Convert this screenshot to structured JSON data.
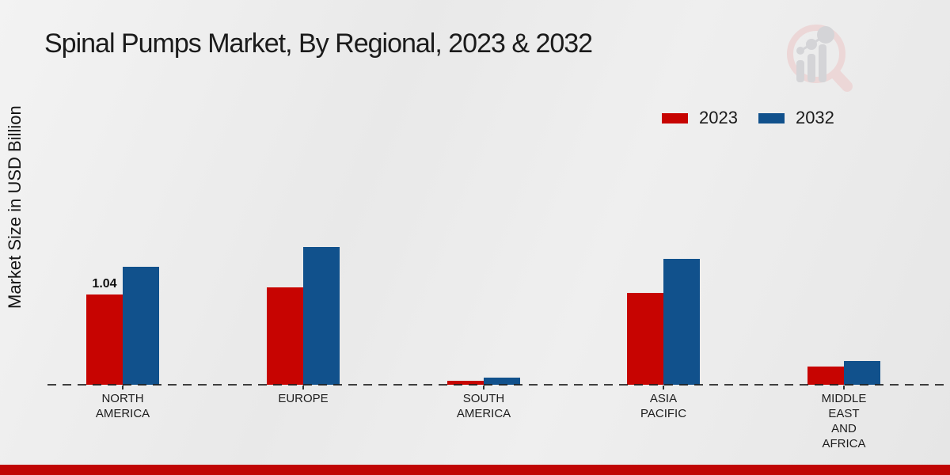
{
  "title": "Spinal Pumps Market, By Regional, 2023 & 2032",
  "y_axis_label": "Market Size in USD Billion",
  "footer_bar_color": "#c00504",
  "chart_data": {
    "type": "bar",
    "title": "Spinal Pumps Market, By Regional, 2023 & 2032",
    "xlabel": "",
    "ylabel": "Market Size in USD Billion",
    "categories": [
      "NORTH AMERICA",
      "EUROPE",
      "SOUTH AMERICA",
      "ASIA PACIFIC",
      "MIDDLE EAST AND AFRICA"
    ],
    "category_display_lines": [
      [
        "NORTH",
        "AMERICA"
      ],
      [
        "EUROPE"
      ],
      [
        "SOUTH",
        "AMERICA"
      ],
      [
        "ASIA",
        "PACIFIC"
      ],
      [
        "MIDDLE",
        "EAST",
        "AND",
        "AFRICA"
      ]
    ],
    "series": [
      {
        "name": "2023",
        "color": "#c70401",
        "values": [
          1.04,
          1.12,
          0.05,
          1.06,
          0.21
        ]
      },
      {
        "name": "2032",
        "color": "#11518c",
        "values": [
          1.36,
          1.59,
          0.08,
          1.45,
          0.27
        ]
      }
    ],
    "data_labels": [
      {
        "series_index": 0,
        "category_index": 0,
        "text": "1.04"
      }
    ],
    "ylim": [
      0,
      1.8
    ],
    "grid": false,
    "legend_position": "top-right",
    "axis_style": "dashed zero line, no y-axis ticks"
  }
}
